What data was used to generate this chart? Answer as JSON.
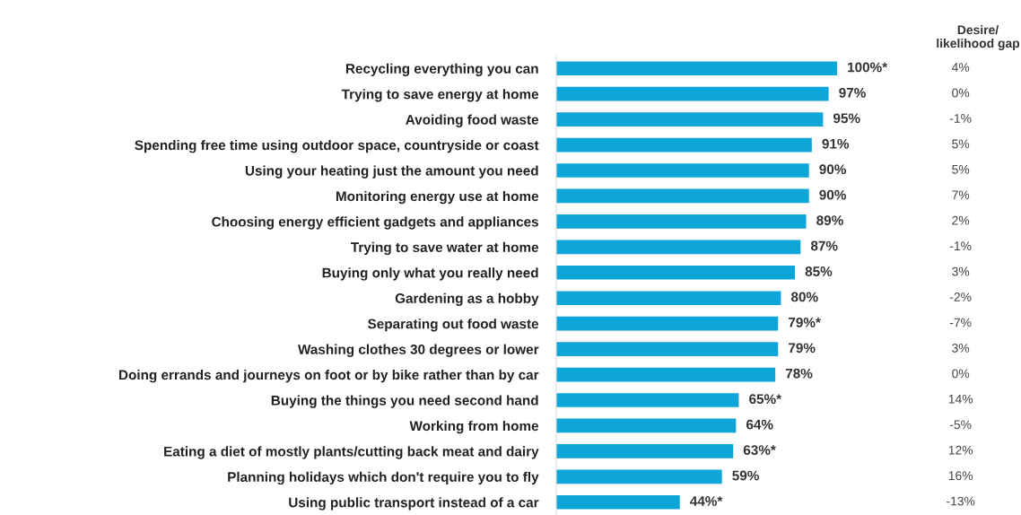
{
  "chart_data": {
    "type": "bar",
    "orientation": "horizontal",
    "categories": [
      "Recycling everything you can",
      "Trying to save energy at home",
      "Avoiding food waste",
      "Spending free time using outdoor space, countryside or coast",
      "Using your heating just the amount you need",
      "Monitoring energy use at home",
      "Choosing energy efficient gadgets and appliances",
      "Trying to save water at home",
      "Buying only what you really need",
      "Gardening as a hobby",
      "Separating out food waste",
      "Washing clothes 30 degrees or lower",
      "Doing errands and journeys on foot or by bike rather than by car",
      "Buying the things you need second hand",
      "Working from home",
      "Eating a diet of mostly plants/cutting back meat and dairy",
      "Planning holidays which don't require you to fly",
      "Using public transport instead of a car"
    ],
    "values": [
      100,
      97,
      95,
      91,
      90,
      90,
      89,
      87,
      85,
      80,
      79,
      79,
      78,
      65,
      64,
      63,
      59,
      44
    ],
    "value_labels": [
      "100%*",
      "97%",
      "95%",
      "91%",
      "90%",
      "90%",
      "89%",
      "87%",
      "85%",
      "80%",
      "79%*",
      "79%",
      "78%",
      "65%*",
      "64%",
      "63%*",
      "59%",
      "44%*"
    ],
    "color": "#0ea5d8",
    "annotations": [
      "Desire/\nlikelihood gap",
      "4%",
      "0%",
      "-1%",
      "5%",
      "5%",
      "7%",
      "2%",
      "-1%",
      "3%",
      "-2%",
      "-7%",
      "3%",
      "0%",
      "14%",
      "-5%",
      "12%",
      "16%",
      "-13%"
    ],
    "grid": false,
    "legend": false
  }
}
